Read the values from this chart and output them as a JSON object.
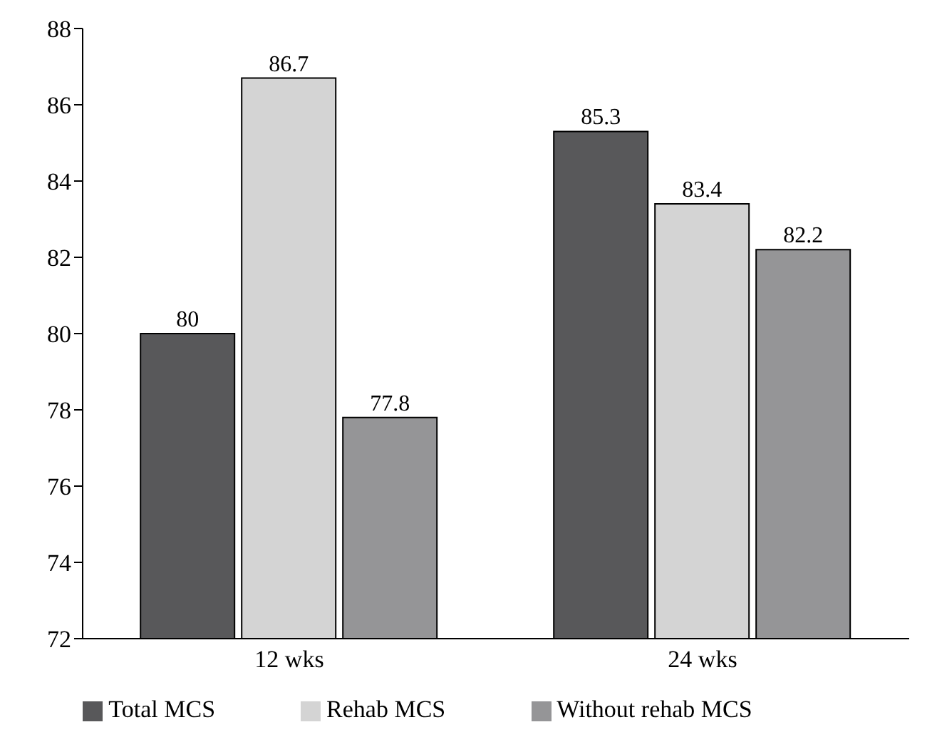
{
  "chart_data": {
    "type": "bar",
    "categories": [
      "12 wks",
      "24 wks"
    ],
    "series": [
      {
        "name": "Total MCS",
        "color": "#58585a",
        "values": [
          80,
          85.3
        ]
      },
      {
        "name": "Rehab MCS",
        "color": "#d4d4d4",
        "values": [
          86.7,
          83.4
        ]
      },
      {
        "name": "Without rehab MCS",
        "color": "#959597",
        "values": [
          77.8,
          82.2
        ]
      }
    ],
    "ylim": [
      72,
      88
    ],
    "yticks": [
      72,
      74,
      76,
      78,
      80,
      82,
      84,
      86,
      88
    ],
    "data_labels": true,
    "grid": false,
    "legend": "bottom"
  }
}
